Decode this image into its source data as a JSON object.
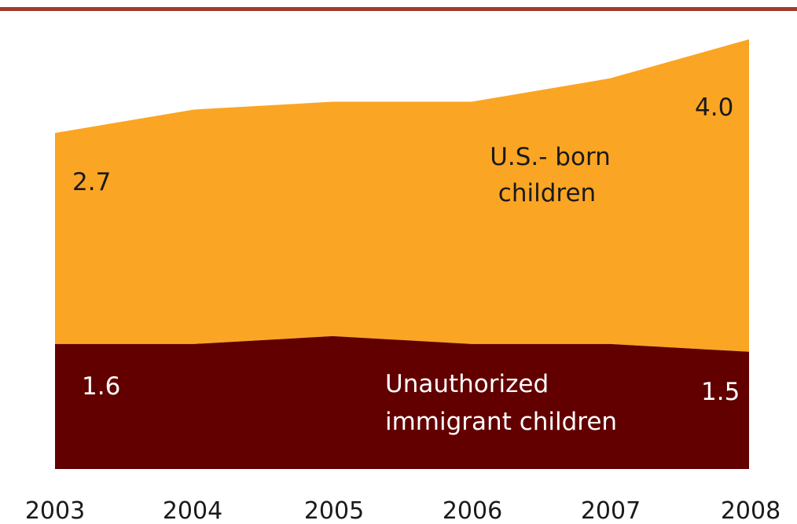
{
  "colors": {
    "rule": "#a33a2a",
    "usborn": "#fba524",
    "unauthorized": "#620000",
    "label_dark": "#1a1a1a",
    "label_light": "#ffffff"
  },
  "chart_data": {
    "type": "area",
    "stacked": true,
    "x": [
      "2003",
      "2004",
      "2005",
      "2006",
      "2007",
      "2008"
    ],
    "series": [
      {
        "name": "Unauthorized immigrant children",
        "values": [
          1.6,
          1.6,
          1.7,
          1.6,
          1.6,
          1.5
        ]
      },
      {
        "name": "U.S.- born children",
        "values": [
          2.7,
          3.0,
          3.0,
          3.1,
          3.4,
          4.0
        ]
      }
    ],
    "ylim": [
      0,
      5.6
    ],
    "grid": false,
    "legend": "inline labels",
    "labels": {
      "usborn_name_line1": "U.S.- born",
      "usborn_name_line2": "children",
      "unauth_name_line1": "Unauthorized",
      "unauth_name_line2": "immigrant children",
      "usborn_start": "2.7",
      "usborn_end": "4.0",
      "unauth_start": "1.6",
      "unauth_end": "1.5"
    }
  }
}
